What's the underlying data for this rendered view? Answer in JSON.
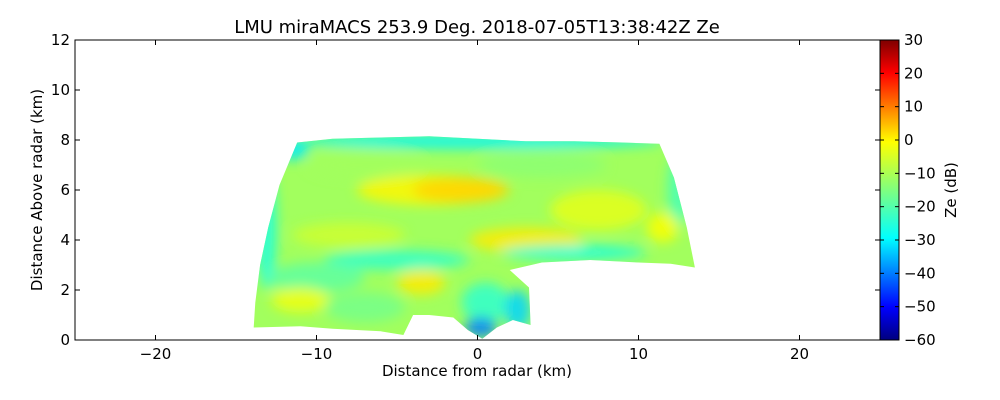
{
  "chart_data": {
    "type": "heatmap",
    "title": "LMU miraMACS 253.9 Deg. 2018-07-05T13:38:42Z  Ze",
    "xlabel": "Distance from radar (km)",
    "ylabel": "Distance Above radar  (km)",
    "colorbar_label": "Ze (dB)",
    "xlim": [
      -25,
      25
    ],
    "ylim": [
      0,
      12
    ],
    "clim": [
      -60,
      30
    ],
    "x_ticks": [
      -20,
      -10,
      0,
      10,
      20
    ],
    "y_ticks": [
      0,
      2,
      4,
      6,
      8,
      10,
      12
    ],
    "colorbar_ticks": [
      -60,
      -50,
      -40,
      -30,
      -20,
      -10,
      0,
      10,
      20,
      30
    ],
    "colormap": "jet",
    "echo_region": {
      "x_range": [
        -14,
        13.5
      ],
      "top_height": 8,
      "typical_ze": [
        -20,
        0
      ],
      "max_ze_zone": {
        "x": [
          -6,
          4
        ],
        "y": [
          5.5,
          6.5
        ],
        "ze": 0
      }
    }
  }
}
